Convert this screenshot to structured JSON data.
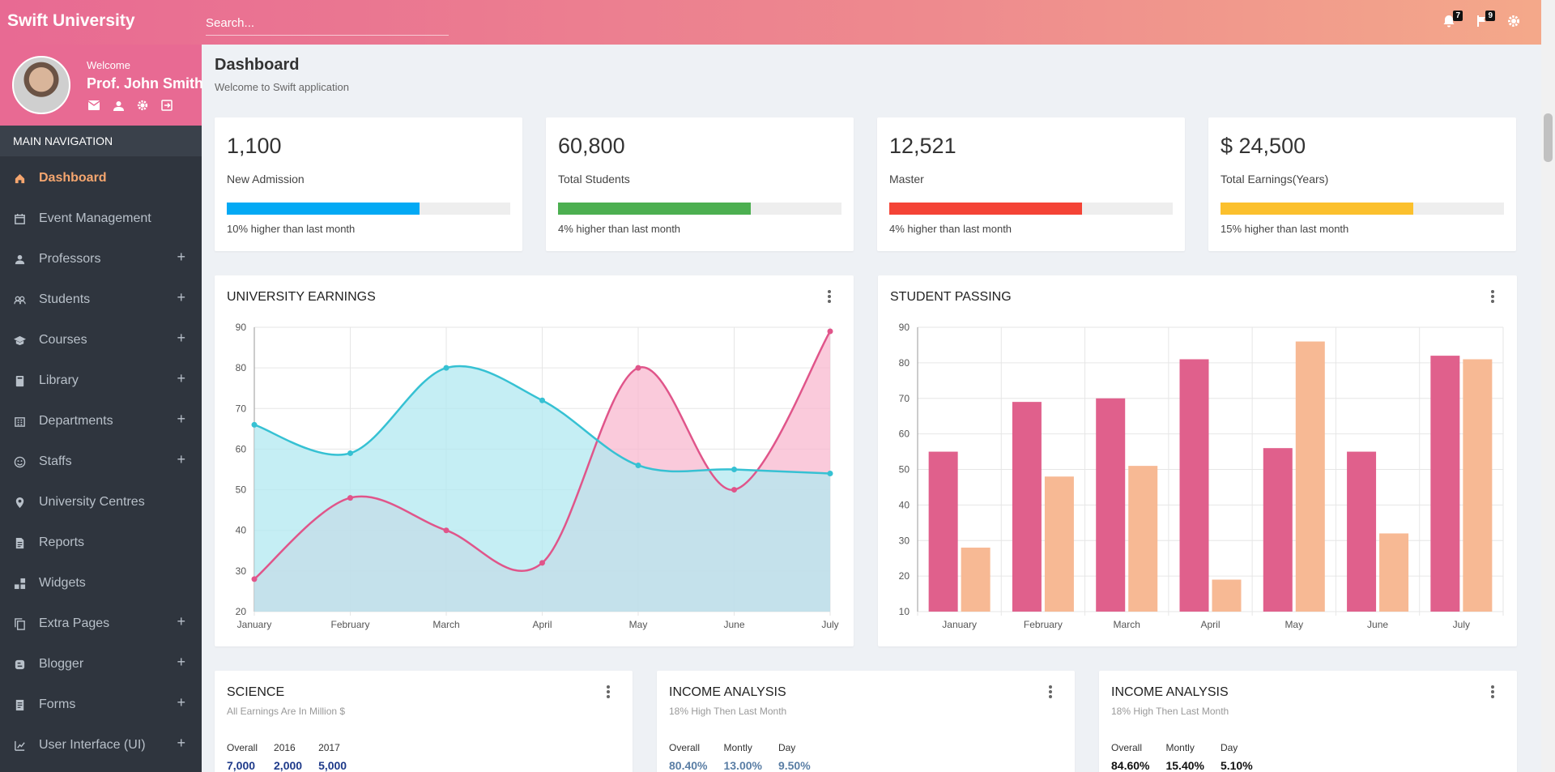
{
  "app": {
    "brand": "Swift University",
    "search_placeholder": "Search..."
  },
  "topbar": {
    "notifications_count": "7",
    "flags_count": "9"
  },
  "profile": {
    "welcome": "Welcome",
    "name": "Prof. John Smith"
  },
  "sidebar": {
    "heading": "MAIN NAVIGATION",
    "items": [
      {
        "label": "Dashboard",
        "icon": "home-icon",
        "expandable": false
      },
      {
        "label": "Event Management",
        "icon": "calendar-icon",
        "expandable": false
      },
      {
        "label": "Professors",
        "icon": "person-icon",
        "expandable": true
      },
      {
        "label": "Students",
        "icon": "group-icon",
        "expandable": true
      },
      {
        "label": "Courses",
        "icon": "school-icon",
        "expandable": true
      },
      {
        "label": "Library",
        "icon": "book-icon",
        "expandable": true
      },
      {
        "label": "Departments",
        "icon": "building-icon",
        "expandable": true
      },
      {
        "label": "Staffs",
        "icon": "smiley-icon",
        "expandable": true
      },
      {
        "label": "University Centres",
        "icon": "location-icon",
        "expandable": false
      },
      {
        "label": "Reports",
        "icon": "document-icon",
        "expandable": false
      },
      {
        "label": "Widgets",
        "icon": "widgets-icon",
        "expandable": false
      },
      {
        "label": "Extra Pages",
        "icon": "copy-icon",
        "expandable": true
      },
      {
        "label": "Blogger",
        "icon": "blogger-icon",
        "expandable": true
      },
      {
        "label": "Forms",
        "icon": "form-icon",
        "expandable": true
      },
      {
        "label": "User Interface (UI)",
        "icon": "ui-icon",
        "expandable": true
      }
    ],
    "plus": "+"
  },
  "page": {
    "title": "Dashboard",
    "subtitle": "Welcome to Swift application"
  },
  "stats": [
    {
      "value": "1,100",
      "label": "New Admission",
      "progress": 0.68,
      "color": "#03a9f4",
      "note": "10% higher than last month"
    },
    {
      "value": "60,800",
      "label": "Total Students",
      "progress": 0.68,
      "color": "#4caf50",
      "note": "4% higher than last month"
    },
    {
      "value": "12,521",
      "label": "Master",
      "progress": 0.68,
      "color": "#f44336",
      "note": "4% higher than last month"
    },
    {
      "value": "$ 24,500",
      "label": "Total Earnings(Years)",
      "progress": 0.68,
      "color": "#fbc02d",
      "note": "15% higher than last month"
    }
  ],
  "chart_data": [
    {
      "type": "area",
      "title": "UNIVERSITY EARNINGS",
      "categories": [
        "January",
        "February",
        "March",
        "April",
        "May",
        "June",
        "July"
      ],
      "ylim": [
        20,
        90
      ],
      "yticks": [
        20,
        30,
        40,
        50,
        60,
        70,
        80,
        90
      ],
      "grid": true,
      "series": [
        {
          "values": [
            28,
            48,
            40,
            32,
            80,
            50,
            89
          ],
          "color": "#e0558a",
          "fill": "#f8b8cf"
        },
        {
          "values": [
            66,
            59,
            80,
            72,
            56,
            55,
            54
          ],
          "color": "#36c1d3",
          "fill": "#b2e8f0"
        }
      ]
    },
    {
      "type": "bar",
      "title": "STUDENT PASSING",
      "categories": [
        "January",
        "February",
        "March",
        "April",
        "May",
        "June",
        "July"
      ],
      "ylim": [
        10,
        90
      ],
      "yticks": [
        10,
        20,
        30,
        40,
        50,
        60,
        70,
        80,
        90
      ],
      "grid": true,
      "series": [
        {
          "values": [
            55,
            69,
            70,
            81,
            56,
            55,
            82
          ],
          "color": "#e0608c"
        },
        {
          "values": [
            28,
            48,
            51,
            19,
            86,
            32,
            81
          ],
          "color": "#f7b994"
        }
      ]
    }
  ],
  "bottom_cards": [
    {
      "title": "SCIENCE",
      "subtitle": "All Earnings Are In Million $",
      "labels": [
        "Overall",
        "2016",
        "2017"
      ],
      "values": [
        "7,000",
        "2,000",
        "5,000"
      ],
      "color": "#1e3a8a"
    },
    {
      "title": "INCOME ANALYSIS",
      "subtitle": "18% High Then Last Month",
      "labels": [
        "Overall",
        "Montly",
        "Day"
      ],
      "values": [
        "80.40%",
        "13.00%",
        "9.50%"
      ],
      "color": "#5a7ea5"
    },
    {
      "title": "INCOME ANALYSIS",
      "subtitle": "18% High Then Last Month",
      "labels": [
        "Overall",
        "Montly",
        "Day"
      ],
      "values": [
        "84.60%",
        "15.40%",
        "5.10%"
      ],
      "color": "#111111"
    }
  ]
}
